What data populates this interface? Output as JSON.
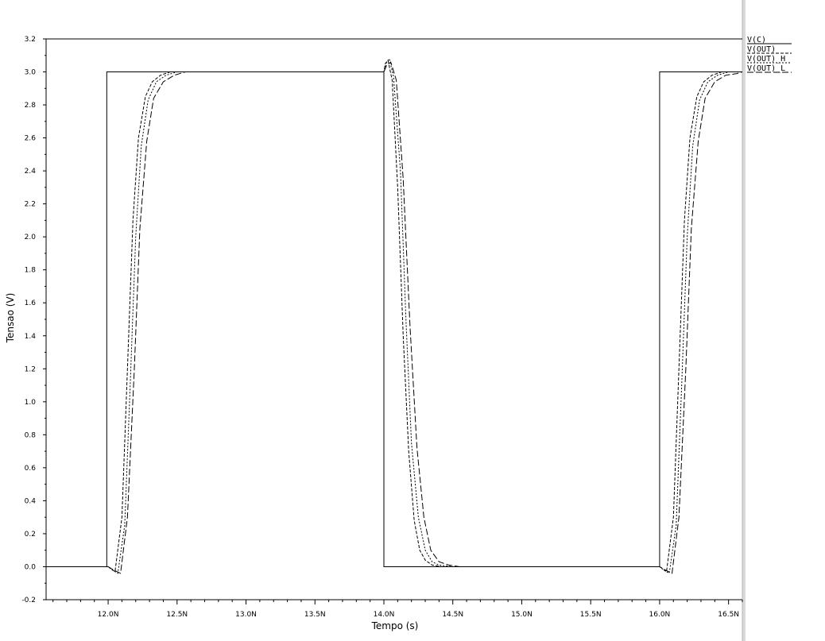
{
  "chart_data": {
    "type": "line",
    "title": "",
    "xlabel": "Tempo (s)",
    "ylabel": "Tensao (V)",
    "xlim": [
      11.55,
      16.6
    ],
    "ylim": [
      -0.2,
      3.2
    ],
    "grid": false,
    "legend_placement": "right",
    "xticks": [
      {
        "value": 12.0,
        "label": "12.0N"
      },
      {
        "value": 12.5,
        "label": "12.5N"
      },
      {
        "value": 13.0,
        "label": "13.0N"
      },
      {
        "value": 13.5,
        "label": "13.5N"
      },
      {
        "value": 14.0,
        "label": "14.0N"
      },
      {
        "value": 14.5,
        "label": "14.5N"
      },
      {
        "value": 15.0,
        "label": "15.0N"
      },
      {
        "value": 15.5,
        "label": "15.5N"
      },
      {
        "value": 16.0,
        "label": "16.0N"
      },
      {
        "value": 16.5,
        "label": "16.5N"
      }
    ],
    "yticks": [
      {
        "value": -0.2,
        "label": "-0.2"
      },
      {
        "value": 0.0,
        "label": "0.0"
      },
      {
        "value": 0.2,
        "label": "0.2"
      },
      {
        "value": 0.4,
        "label": "0.4"
      },
      {
        "value": 0.6,
        "label": "0.6"
      },
      {
        "value": 0.8,
        "label": "0.8"
      },
      {
        "value": 1.0,
        "label": "1.0"
      },
      {
        "value": 1.2,
        "label": "1.2"
      },
      {
        "value": 1.4,
        "label": "1.4"
      },
      {
        "value": 1.6,
        "label": "1.6"
      },
      {
        "value": 1.8,
        "label": "1.8"
      },
      {
        "value": 2.0,
        "label": "2.0"
      },
      {
        "value": 2.2,
        "label": "2.2"
      },
      {
        "value": 2.4,
        "label": "2.4"
      },
      {
        "value": 2.6,
        "label": "2.6"
      },
      {
        "value": 2.8,
        "label": "2.8"
      },
      {
        "value": 3.0,
        "label": "3.0"
      },
      {
        "value": 3.2,
        "label": "3.2"
      }
    ],
    "series": [
      {
        "name": "V(C)",
        "dash": "none",
        "x": [
          11.55,
          11.99,
          11.99,
          14.0,
          14.0,
          16.0,
          16.0,
          16.6
        ],
        "y": [
          0.0,
          0.0,
          3.0,
          3.0,
          0.0,
          0.0,
          3.0,
          3.0
        ]
      },
      {
        "name": "V(OUT)",
        "dash": "4,2",
        "x": [
          11.55,
          12.0,
          12.02,
          12.05,
          12.1,
          12.14,
          12.18,
          12.22,
          12.27,
          12.32,
          12.38,
          12.45,
          12.55,
          14.0,
          14.01,
          14.03,
          14.06,
          14.1,
          14.14,
          14.18,
          14.22,
          14.26,
          14.3,
          14.35,
          14.42,
          14.55,
          16.0,
          16.02,
          16.05,
          16.1,
          16.14,
          16.18,
          16.22,
          16.27,
          16.32,
          16.38,
          16.45,
          16.6
        ],
        "y": [
          0.0,
          0.0,
          -0.01,
          -0.03,
          0.3,
          1.2,
          2.1,
          2.6,
          2.85,
          2.94,
          2.98,
          3.0,
          3.0,
          3.0,
          3.05,
          3.07,
          2.95,
          2.3,
          1.4,
          0.7,
          0.28,
          0.1,
          0.04,
          0.01,
          0.0,
          0.0,
          0.0,
          -0.01,
          -0.03,
          0.3,
          1.2,
          2.1,
          2.6,
          2.85,
          2.94,
          2.98,
          3.0,
          3.0
        ]
      },
      {
        "name": "V(OUT)_H",
        "dash": "2,2",
        "x": [
          11.55,
          12.0,
          12.03,
          12.07,
          12.12,
          12.16,
          12.2,
          12.24,
          12.29,
          12.35,
          12.42,
          12.5,
          12.6,
          14.0,
          14.02,
          14.04,
          14.07,
          14.12,
          14.16,
          14.2,
          14.25,
          14.3,
          14.35,
          14.4,
          14.5,
          14.6,
          16.0,
          16.03,
          16.07,
          16.12,
          16.16,
          16.2,
          16.24,
          16.29,
          16.35,
          16.42,
          16.5,
          16.6
        ],
        "y": [
          0.0,
          0.0,
          -0.02,
          -0.04,
          0.25,
          1.1,
          2.0,
          2.55,
          2.83,
          2.94,
          2.98,
          3.0,
          3.0,
          3.0,
          3.06,
          3.08,
          2.97,
          2.4,
          1.5,
          0.75,
          0.3,
          0.1,
          0.03,
          0.01,
          0.0,
          0.0,
          0.0,
          -0.02,
          -0.04,
          0.25,
          1.1,
          2.0,
          2.55,
          2.83,
          2.94,
          2.98,
          3.0,
          3.0
        ]
      },
      {
        "name": "V(OUT)_L",
        "dash": "8,3",
        "x": [
          11.55,
          12.0,
          12.04,
          12.09,
          12.14,
          12.19,
          12.23,
          12.28,
          12.33,
          12.4,
          12.48,
          12.56,
          12.65,
          14.0,
          14.02,
          14.05,
          14.09,
          14.14,
          14.19,
          14.24,
          14.29,
          14.34,
          14.4,
          14.47,
          14.55,
          14.65,
          16.0,
          16.04,
          16.09,
          16.14,
          16.19,
          16.23,
          16.28,
          16.33,
          16.4,
          16.48,
          16.56,
          16.6
        ],
        "y": [
          0.0,
          0.0,
          -0.02,
          -0.04,
          0.3,
          1.2,
          2.05,
          2.58,
          2.84,
          2.94,
          2.98,
          3.0,
          3.0,
          3.0,
          3.04,
          3.06,
          2.95,
          2.35,
          1.45,
          0.72,
          0.3,
          0.1,
          0.03,
          0.01,
          0.0,
          0.0,
          0.0,
          -0.02,
          -0.04,
          0.3,
          1.2,
          2.05,
          2.58,
          2.84,
          2.94,
          2.98,
          2.99,
          3.0
        ]
      }
    ]
  }
}
